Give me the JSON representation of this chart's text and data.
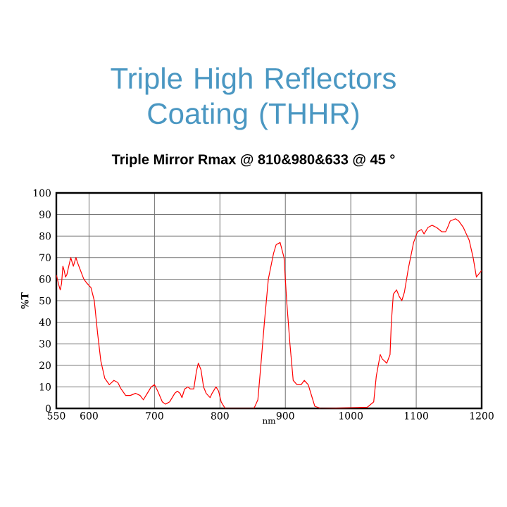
{
  "chart_data": {
    "type": "line",
    "title": "Triple High Reflectors Coating (THHR)",
    "subtitle": "Triple Mirror Rmax  @ 810&980&633 @ 45 °",
    "xlabel": "nm",
    "ylabel": "%T",
    "xlim": [
      550,
      1200
    ],
    "ylim": [
      0,
      100
    ],
    "xticks": [
      550,
      600,
      700,
      800,
      900,
      1000,
      1100,
      1200
    ],
    "yticks": [
      0,
      10,
      20,
      30,
      40,
      50,
      60,
      70,
      80,
      90,
      100
    ],
    "grid": true,
    "marker": "none",
    "line_style": "solid",
    "series": [
      {
        "color": "#ff0000",
        "x": [
          550,
          554,
          556,
          558,
          560,
          562,
          564,
          566,
          569,
          572,
          575,
          576,
          578,
          580,
          582,
          587,
          592,
          597,
          603,
          608,
          613,
          618,
          624,
          631,
          638,
          644,
          649,
          656,
          663,
          671,
          678,
          683,
          689,
          695,
          700,
          705,
          712,
          717,
          723,
          731,
          735,
          739,
          742,
          746,
          751,
          755,
          760,
          764,
          767,
          771,
          775,
          779,
          785,
          788,
          794,
          798,
          802,
          808,
          852,
          855,
          858,
          862,
          868,
          874,
          882,
          886,
          892,
          898,
          902,
          907,
          912,
          918,
          924,
          929,
          935,
          941,
          945,
          954,
          1025,
          1035,
          1039,
          1045,
          1048,
          1055,
          1060,
          1062,
          1065,
          1070,
          1074,
          1078,
          1082,
          1088,
          1096,
          1102,
          1108,
          1112,
          1118,
          1124,
          1131,
          1139,
          1145,
          1148,
          1152,
          1160,
          1165,
          1172,
          1181,
          1187,
          1192,
          1200
        ],
        "values": [
          62,
          57,
          55,
          58,
          66,
          64,
          61,
          62,
          66,
          70,
          67,
          66,
          68,
          70,
          68,
          64,
          60,
          58,
          56,
          50,
          35,
          22,
          14,
          11,
          13,
          12,
          9,
          6,
          6,
          7,
          6,
          4,
          7,
          10,
          11,
          8,
          3,
          2,
          3,
          7,
          8,
          7,
          5,
          9,
          10,
          9,
          9,
          17,
          21,
          18,
          10,
          7,
          5,
          7,
          10,
          8,
          3,
          0,
          0,
          2,
          4,
          18,
          40,
          60,
          72,
          76,
          77,
          70,
          50,
          30,
          13,
          11,
          11,
          13,
          11,
          5,
          1,
          0,
          0.5,
          3,
          15,
          25,
          23,
          21,
          25,
          40,
          53,
          55,
          52,
          50,
          54,
          65,
          77,
          82,
          83,
          81,
          84,
          85,
          84,
          82,
          82,
          84,
          87,
          88,
          87,
          84,
          78,
          70,
          61,
          64
        ]
      }
    ]
  }
}
